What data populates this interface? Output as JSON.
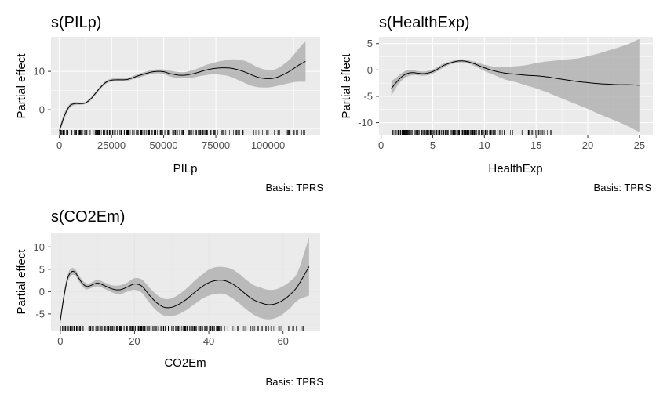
{
  "chart_data": [
    {
      "type": "line",
      "title": "s(PILp)",
      "xlabel": "PILp",
      "ylabel": "Partial effect",
      "caption": "Basis: TPRS",
      "background": "gray",
      "grid": true,
      "xlim": [
        -4000,
        125000
      ],
      "ylim": [
        -6.5,
        19
      ],
      "xticks": [
        0,
        25000,
        50000,
        75000,
        100000
      ],
      "xtick_labels": [
        "0",
        "25000",
        "50000",
        "75000",
        "100000"
      ],
      "yticks": [
        0,
        10
      ],
      "ytick_labels": [
        "0",
        "10"
      ],
      "series": [
        {
          "x": [
            0,
            2500,
            5000,
            7500,
            10000,
            12500,
            15000,
            17500,
            20000,
            22500,
            25000,
            27500,
            30000,
            32500,
            35000,
            37500,
            40000,
            42500,
            45000,
            47500,
            50000,
            52500,
            55000,
            57500,
            60000,
            62500,
            65000,
            67500,
            70000,
            72500,
            75000,
            77500,
            80000,
            82500,
            85000,
            87500,
            90000,
            92500,
            95000,
            97500,
            100000,
            102500,
            105000,
            107500,
            110000,
            112500,
            115000,
            118000
          ],
          "y": [
            -5.5,
            -1.5,
            1.0,
            1.6,
            1.6,
            1.8,
            2.8,
            4.4,
            6.0,
            7.2,
            7.7,
            7.8,
            7.8,
            7.9,
            8.3,
            8.8,
            9.2,
            9.6,
            9.9,
            10.0,
            9.9,
            9.5,
            9.2,
            9.0,
            9.0,
            9.2,
            9.5,
            9.9,
            10.3,
            10.6,
            10.8,
            10.9,
            10.9,
            10.8,
            10.5,
            10.1,
            9.6,
            9.0,
            8.5,
            8.2,
            8.1,
            8.2,
            8.6,
            9.2,
            9.9,
            10.8,
            11.7,
            12.6
          ],
          "lower": [
            -6.3,
            -2.3,
            0.5,
            1.2,
            1.3,
            1.5,
            2.4,
            4.0,
            5.6,
            6.8,
            7.3,
            7.4,
            7.4,
            7.5,
            7.9,
            8.3,
            8.7,
            9.1,
            9.4,
            9.5,
            9.3,
            8.8,
            8.4,
            8.2,
            8.2,
            8.3,
            8.5,
            8.8,
            9.0,
            9.2,
            9.2,
            9.1,
            8.9,
            8.5,
            7.9,
            7.3,
            6.7,
            6.2,
            5.9,
            5.8,
            5.8,
            6.0,
            6.3,
            6.6,
            6.9,
            7.2,
            7.3,
            7.3
          ],
          "upper": [
            -4.7,
            -0.7,
            1.5,
            2.0,
            1.9,
            2.1,
            3.2,
            4.8,
            6.4,
            7.6,
            8.1,
            8.2,
            8.2,
            8.3,
            8.7,
            9.3,
            9.7,
            10.1,
            10.4,
            10.5,
            10.5,
            10.2,
            10.0,
            9.8,
            9.8,
            10.1,
            10.5,
            11.0,
            11.6,
            12.0,
            12.4,
            12.7,
            12.9,
            13.1,
            13.1,
            12.9,
            12.5,
            11.8,
            11.1,
            10.6,
            10.4,
            10.4,
            10.9,
            11.8,
            12.9,
            14.4,
            16.1,
            17.9
          ]
        }
      ],
      "rug_min": 0,
      "rug_max": 118000
    },
    {
      "type": "line",
      "title": "s(HealthExp)",
      "xlabel": "HealthExp",
      "ylabel": "Partial effect",
      "caption": "Basis: TPRS",
      "background": "gray",
      "grid": true,
      "xlim": [
        -0.2,
        26.3
      ],
      "ylim": [
        -12.3,
        6.3
      ],
      "xticks": [
        0,
        5,
        10,
        15,
        20,
        25
      ],
      "xtick_labels": [
        "0",
        "5",
        "10",
        "15",
        "20",
        "25"
      ],
      "yticks": [
        -10,
        -5,
        0,
        5
      ],
      "ytick_labels": [
        "-10",
        "-5",
        "0",
        "5"
      ],
      "series": [
        {
          "x": [
            1,
            1.5,
            2,
            2.5,
            3,
            3.5,
            4,
            4.5,
            5,
            5.5,
            6,
            6.5,
            7,
            7.5,
            8,
            8.5,
            9,
            9.5,
            10,
            11,
            12,
            13,
            14,
            15,
            16,
            17,
            18,
            19,
            20,
            21,
            22,
            23,
            24,
            25
          ],
          "y": [
            -3.5,
            -2.3,
            -1.3,
            -0.7,
            -0.5,
            -0.6,
            -0.7,
            -0.6,
            -0.3,
            0.2,
            0.8,
            1.2,
            1.5,
            1.7,
            1.7,
            1.5,
            1.2,
            0.8,
            0.4,
            -0.2,
            -0.6,
            -0.8,
            -1.0,
            -1.1,
            -1.3,
            -1.6,
            -1.9,
            -2.2,
            -2.4,
            -2.6,
            -2.7,
            -2.8,
            -2.8,
            -2.9
          ],
          "lower": [
            -4.9,
            -3.2,
            -2.0,
            -1.3,
            -1.0,
            -1.0,
            -1.1,
            -1.0,
            -0.7,
            -0.2,
            0.4,
            0.9,
            1.2,
            1.4,
            1.4,
            1.2,
            0.8,
            0.3,
            -0.2,
            -1.0,
            -1.8,
            -2.3,
            -2.9,
            -3.5,
            -4.2,
            -5.0,
            -5.8,
            -6.6,
            -7.4,
            -8.3,
            -9.1,
            -9.9,
            -10.8,
            -11.8
          ],
          "upper": [
            -2.1,
            -1.4,
            -0.6,
            -0.1,
            0.0,
            -0.2,
            -0.3,
            -0.2,
            0.1,
            0.6,
            1.2,
            1.5,
            1.8,
            2.0,
            2.0,
            1.8,
            1.6,
            1.3,
            1.0,
            0.6,
            0.6,
            0.7,
            0.9,
            1.3,
            1.6,
            1.8,
            2.0,
            2.2,
            2.6,
            3.1,
            3.7,
            4.3,
            5.0,
            5.9
          ]
        }
      ],
      "rug_min": 1,
      "rug_max": 16.5
    },
    {
      "type": "line",
      "title": "s(CO2Em)",
      "xlabel": "CO2Em",
      "ylabel": "Partial effect",
      "caption": "Basis: TPRS",
      "background": "white",
      "grid": true,
      "xlim": [
        -2.5,
        70
      ],
      "ylim": [
        -8.7,
        13.2
      ],
      "xticks": [
        0,
        20,
        40,
        60
      ],
      "xtick_labels": [
        "0",
        "20",
        "40",
        "60"
      ],
      "yticks": [
        -5,
        0,
        5,
        10
      ],
      "ytick_labels": [
        "-5",
        "0",
        "5",
        "10"
      ],
      "series": [
        {
          "x": [
            0,
            1,
            2,
            3,
            4,
            5,
            6,
            7,
            8,
            10,
            12,
            14,
            16,
            18,
            20,
            22,
            24,
            26,
            28,
            30,
            32,
            34,
            36,
            38,
            40,
            42,
            44,
            46,
            48,
            50,
            52,
            54,
            56,
            58,
            60,
            62,
            64,
            67
          ],
          "y": [
            -6.5,
            -1.0,
            3.0,
            4.4,
            4.3,
            3.0,
            1.8,
            1.2,
            1.3,
            1.9,
            1.3,
            0.6,
            0.4,
            1.0,
            1.7,
            1.2,
            -0.8,
            -2.5,
            -3.5,
            -3.5,
            -2.8,
            -1.7,
            -0.3,
            1.0,
            2.0,
            2.5,
            2.5,
            1.9,
            0.8,
            -0.6,
            -1.8,
            -2.5,
            -2.9,
            -2.7,
            -1.9,
            -0.6,
            1.3,
            5.6
          ],
          "lower": [
            -7.4,
            -2.0,
            2.2,
            3.6,
            3.6,
            2.3,
            1.1,
            0.5,
            0.7,
            1.2,
            0.6,
            -0.2,
            -0.6,
            0.0,
            0.4,
            -0.3,
            -2.5,
            -4.3,
            -5.4,
            -5.5,
            -5.0,
            -4.1,
            -2.9,
            -1.7,
            -0.9,
            -0.5,
            -0.5,
            -1.3,
            -2.5,
            -3.9,
            -5.1,
            -5.9,
            -6.2,
            -5.9,
            -5.0,
            -3.6,
            -1.9,
            -0.9
          ],
          "upper": [
            -5.6,
            0.0,
            3.8,
            5.2,
            5.0,
            3.7,
            2.5,
            1.9,
            1.9,
            2.6,
            2.0,
            1.4,
            1.4,
            2.0,
            3.0,
            2.7,
            0.9,
            -0.7,
            -1.6,
            -1.5,
            -0.6,
            0.7,
            2.3,
            3.7,
            4.9,
            5.5,
            5.5,
            5.1,
            4.1,
            2.7,
            1.5,
            0.9,
            0.4,
            0.5,
            1.2,
            2.4,
            4.5,
            12.1
          ]
        }
      ],
      "rug_min": 0,
      "rug_max": 66
    }
  ]
}
